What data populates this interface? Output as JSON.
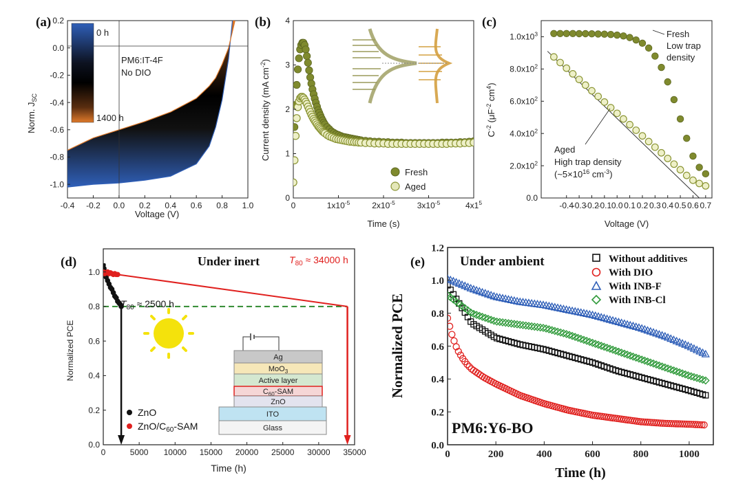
{
  "figure": {
    "colors": {
      "olive": "#7f8a2e",
      "olive_open": "#a8b14a",
      "blue": "#2f5fb8",
      "orange": "#e07a2a",
      "red": "#e0201e",
      "green_dash": "#2f8a2f"
    }
  },
  "chart_data": [
    {
      "id": "a",
      "panel_label": "(a)",
      "type": "area",
      "xlabel": "Voltage (V)",
      "ylabel_main": "Norm. J",
      "ylabel_sub": "SC",
      "xlim": [
        -0.4,
        1.0
      ],
      "ylim": [
        -1.1,
        0.2
      ],
      "xticks": [
        "-0.4",
        "-0.2",
        "0.0",
        "0.2",
        "0.4",
        "0.6",
        "0.8",
        "1.0"
      ],
      "yticks": [
        "0.2",
        "0.0",
        "-0.2",
        "-0.4",
        "-0.6",
        "-0.8",
        "-1.0"
      ],
      "annotation_lines": [
        "PM6:IT-4F",
        "No DIO"
      ],
      "colorbar_labels": [
        "0 h",
        "1400 h"
      ],
      "series": [
        {
          "name": "0 h",
          "x": [
            -0.4,
            -0.2,
            0.0,
            0.2,
            0.4,
            0.6,
            0.7,
            0.75,
            0.8,
            0.85,
            0.88
          ],
          "y": [
            -1.02,
            -1.0,
            -0.99,
            -0.97,
            -0.94,
            -0.85,
            -0.72,
            -0.58,
            -0.38,
            -0.08,
            0.2
          ]
        },
        {
          "name": "1400 h",
          "x": [
            -0.4,
            -0.2,
            0.0,
            0.2,
            0.4,
            0.6,
            0.7,
            0.75,
            0.8,
            0.85,
            0.9
          ],
          "y": [
            -0.75,
            -0.66,
            -0.6,
            -0.54,
            -0.47,
            -0.37,
            -0.28,
            -0.22,
            -0.12,
            0.0,
            0.2
          ]
        }
      ]
    },
    {
      "id": "b",
      "panel_label": "(b)",
      "type": "scatter",
      "xlabel": "Time (s)",
      "ylabel": "Current density (mA cm",
      "ylabel_sup": "-2",
      "ylabel_end": ")",
      "xlim": [
        0,
        4e-05
      ],
      "ylim": [
        0,
        4
      ],
      "xticks": [
        "0",
        "1x10",
        "2x10",
        "3x10",
        "4x1"
      ],
      "xtick_sups": [
        "",
        "-5",
        "-5",
        "-5",
        "5"
      ],
      "yticks": [
        "0",
        "1",
        "2",
        "3",
        "4"
      ],
      "series": [
        {
          "name": "Fresh",
          "x": [
            0,
            0.25,
            0.5,
            0.75,
            1.0,
            1.25,
            1.5,
            1.75,
            2.0,
            2.25,
            2.5,
            2.75,
            3.0,
            3.25,
            3.5,
            3.75,
            4.0,
            4.25,
            4.5,
            4.75,
            5.0,
            5.25,
            5.5,
            5.75,
            6.0,
            6.25,
            6.5,
            6.75,
            7.0,
            7.5,
            8,
            8.5,
            9,
            9.5,
            10,
            10.5,
            11,
            11.5,
            12,
            12.5,
            13,
            13.5,
            14,
            14.5,
            15,
            16,
            17,
            18,
            19,
            20,
            21,
            22,
            23,
            24,
            25,
            26,
            27,
            28,
            29,
            30,
            31,
            32,
            33,
            34,
            35,
            36,
            37,
            38,
            39,
            40
          ],
          "y": [
            0.35,
            1.6,
            2.1,
            2.55,
            2.9,
            3.15,
            3.35,
            3.45,
            3.5,
            3.5,
            3.45,
            3.35,
            3.2,
            3.05,
            2.88,
            2.72,
            2.58,
            2.45,
            2.34,
            2.24,
            2.15,
            2.06,
            1.98,
            1.92,
            1.86,
            1.8,
            1.75,
            1.7,
            1.66,
            1.6,
            1.55,
            1.5,
            1.47,
            1.44,
            1.42,
            1.4,
            1.38,
            1.37,
            1.36,
            1.35,
            1.34,
            1.33,
            1.32,
            1.31,
            1.3,
            1.29,
            1.28,
            1.27,
            1.27,
            1.26,
            1.26,
            1.25,
            1.25,
            1.25,
            1.24,
            1.24,
            1.24,
            1.24,
            1.24,
            1.24,
            1.24,
            1.24,
            1.25,
            1.25,
            1.25,
            1.25,
            1.26,
            1.26,
            1.27,
            1.28
          ]
        },
        {
          "name": "Aged",
          "x": [
            0,
            0.25,
            0.5,
            0.75,
            1.0,
            1.25,
            1.5,
            1.75,
            2.0,
            2.25,
            2.5,
            2.75,
            3.0,
            3.25,
            3.5,
            3.75,
            4.0,
            4.25,
            4.5,
            4.75,
            5.0,
            5.25,
            5.5,
            5.75,
            6.0,
            6.25,
            6.5,
            6.75,
            7.0,
            7.5,
            8,
            8.5,
            9,
            9.5,
            10,
            10.5,
            11,
            11.5,
            12,
            12.5,
            13,
            13.5,
            14,
            14.5,
            15,
            16,
            17,
            18,
            19,
            20,
            21,
            22,
            23,
            24,
            25,
            26,
            27,
            28,
            29,
            30,
            31,
            32,
            33,
            34,
            35,
            36,
            37,
            38,
            39,
            40
          ],
          "y": [
            0.35,
            0.85,
            1.4,
            1.8,
            2.05,
            2.18,
            2.25,
            2.28,
            2.28,
            2.26,
            2.22,
            2.17,
            2.12,
            2.06,
            2.0,
            1.94,
            1.88,
            1.83,
            1.78,
            1.74,
            1.7,
            1.66,
            1.62,
            1.59,
            1.56,
            1.53,
            1.5,
            1.48,
            1.46,
            1.42,
            1.39,
            1.37,
            1.35,
            1.33,
            1.32,
            1.31,
            1.3,
            1.29,
            1.28,
            1.27,
            1.27,
            1.26,
            1.26,
            1.25,
            1.25,
            1.24,
            1.24,
            1.23,
            1.23,
            1.23,
            1.22,
            1.22,
            1.22,
            1.22,
            1.22,
            1.22,
            1.22,
            1.22,
            1.22,
            1.22,
            1.22,
            1.22,
            1.22,
            1.22,
            1.23,
            1.23,
            1.23,
            1.24,
            1.24,
            1.25
          ]
        }
      ]
    },
    {
      "id": "c",
      "panel_label": "(c)",
      "type": "scatter",
      "xlabel": "Voltage (V)",
      "ylabel": "C",
      "ylabel_sup": "-2",
      "ylabel_rest": " (μF",
      "ylabel_sup2": "-2",
      "ylabel_rest2": " cm",
      "ylabel_sup3": "4",
      "ylabel_end": ")",
      "xlim": [
        -0.6,
        0.75
      ],
      "ylim": [
        0,
        1100
      ],
      "xticks": [
        "-0.4",
        "-0.3",
        "-0.2",
        "-0.1",
        "0.0",
        "0.1",
        "0.2",
        "0.3",
        "0.4",
        "0.5",
        "0.6",
        "0.7"
      ],
      "yticks": [
        "0.0",
        "2.0x10",
        "4.0x10",
        "6.0x10",
        "8.0x10",
        "1.0x10"
      ],
      "ytick_sups": [
        "",
        "2",
        "2",
        "2",
        "2",
        "3"
      ],
      "annotations": {
        "fresh": [
          "Fresh",
          "Low trap",
          "density"
        ],
        "aged": [
          "Aged",
          "High trap density",
          "(~5×10",
          "16",
          " cm",
          "-3",
          ")"
        ]
      },
      "series": [
        {
          "name": "Fresh",
          "x": [
            -0.5,
            -0.45,
            -0.4,
            -0.35,
            -0.3,
            -0.25,
            -0.2,
            -0.15,
            -0.1,
            -0.05,
            0.0,
            0.05,
            0.1,
            0.15,
            0.2,
            0.25,
            0.3,
            0.35,
            0.4,
            0.45,
            0.5,
            0.55,
            0.6,
            0.65,
            0.7
          ],
          "y": [
            1020,
            1020,
            1020,
            1020,
            1019,
            1019,
            1018,
            1017,
            1016,
            1014,
            1010,
            1005,
            995,
            980,
            960,
            930,
            880,
            810,
            720,
            610,
            490,
            370,
            260,
            190,
            150
          ]
        },
        {
          "name": "Aged",
          "x": [
            -0.5,
            -0.45,
            -0.4,
            -0.35,
            -0.3,
            -0.25,
            -0.2,
            -0.15,
            -0.1,
            -0.05,
            0.0,
            0.05,
            0.1,
            0.15,
            0.2,
            0.25,
            0.3,
            0.35,
            0.4,
            0.45,
            0.5,
            0.55,
            0.6,
            0.65,
            0.7
          ],
          "y": [
            875,
            840,
            805,
            770,
            735,
            700,
            665,
            630,
            595,
            560,
            525,
            490,
            455,
            420,
            385,
            350,
            315,
            280,
            245,
            210,
            175,
            140,
            110,
            90,
            75
          ]
        }
      ]
    },
    {
      "id": "d",
      "panel_label": "(d)",
      "type": "line",
      "title": "Under inert",
      "xlabel": "Time (h)",
      "ylabel": "Normalized PCE",
      "xlim": [
        0,
        35000
      ],
      "ylim": [
        0,
        1.05
      ],
      "xticks": [
        "0",
        "5000",
        "10000",
        "15000",
        "20000",
        "25000",
        "30000",
        "35000"
      ],
      "yticks": [
        "0.0",
        "0.2",
        "0.4",
        "0.6",
        "0.8",
        "1.0"
      ],
      "t80_zno": "T",
      "t80_zno_sub": "80",
      "t80_zno_val": " ≈ 2500 h",
      "t80_sam": "T",
      "t80_sam_sub": "80",
      "t80_sam_val": " ≈ 34000 h",
      "legend": [
        "ZnO",
        "ZnO/C",
        "60",
        "-SAM"
      ],
      "stack_layers": [
        "Ag",
        "MoO",
        "3",
        "Active layer",
        "C",
        "60",
        "-SAM",
        "ZnO",
        "ITO",
        "Glass"
      ],
      "series": [
        {
          "name": "ZnO",
          "x": [
            0,
            100,
            200,
            400,
            600,
            800,
            1000,
            1200,
            1400,
            1600,
            1800,
            2000,
            2200,
            2400,
            2500
          ],
          "y": [
            1.04,
            1.02,
            1.0,
            0.97,
            0.95,
            0.93,
            0.91,
            0.9,
            0.88,
            0.86,
            0.85,
            0.83,
            0.82,
            0.81,
            0.8
          ]
        },
        {
          "name": "ZnO/C60-SAM",
          "x": [
            0,
            200,
            400,
            600,
            800,
            1000,
            1200,
            1400,
            1600,
            1800,
            2000,
            34000
          ],
          "y": [
            1.0,
            0.99,
            0.995,
            1.0,
            0.99,
            0.995,
            0.99,
            0.985,
            0.99,
            0.985,
            0.985,
            0.8
          ]
        }
      ]
    },
    {
      "id": "e",
      "panel_label": "(e)",
      "type": "scatter",
      "title": "Under ambient",
      "xlabel": "Time (h)",
      "ylabel": "Normalized PCE",
      "xlim": [
        0,
        1100
      ],
      "ylim": [
        0,
        1.2
      ],
      "xticks": [
        "0",
        "200",
        "400",
        "600",
        "800",
        "1000"
      ],
      "yticks": [
        "0.0",
        "0.2",
        "0.4",
        "0.6",
        "0.8",
        "1.0",
        "1.2"
      ],
      "material": "PM6:Y6-BO",
      "series": [
        {
          "name": "Without additives",
          "x": [
            0,
            100,
            200,
            300,
            400,
            500,
            600,
            700,
            800,
            900,
            1000,
            1070
          ],
          "y": [
            0.97,
            0.74,
            0.65,
            0.61,
            0.58,
            0.54,
            0.5,
            0.45,
            0.41,
            0.37,
            0.33,
            0.3
          ]
        },
        {
          "name": "With DIO",
          "x": [
            0,
            20,
            40,
            60,
            80,
            100,
            150,
            200,
            300,
            400,
            500,
            600,
            700,
            800,
            900,
            1000,
            1070
          ],
          "y": [
            0.77,
            0.66,
            0.58,
            0.53,
            0.49,
            0.46,
            0.41,
            0.37,
            0.3,
            0.25,
            0.21,
            0.18,
            0.16,
            0.14,
            0.13,
            0.125,
            0.12
          ]
        },
        {
          "name": "With INB-F",
          "x": [
            0,
            100,
            200,
            300,
            400,
            500,
            600,
            700,
            800,
            900,
            1000,
            1070
          ],
          "y": [
            1.01,
            0.95,
            0.9,
            0.87,
            0.85,
            0.82,
            0.79,
            0.75,
            0.71,
            0.66,
            0.6,
            0.55
          ]
        },
        {
          "name": "With INB-Cl",
          "x": [
            0,
            100,
            200,
            300,
            400,
            500,
            600,
            700,
            800,
            900,
            1000,
            1070
          ],
          "y": [
            0.91,
            0.8,
            0.75,
            0.73,
            0.71,
            0.67,
            0.62,
            0.57,
            0.52,
            0.47,
            0.42,
            0.39
          ]
        }
      ]
    }
  ]
}
